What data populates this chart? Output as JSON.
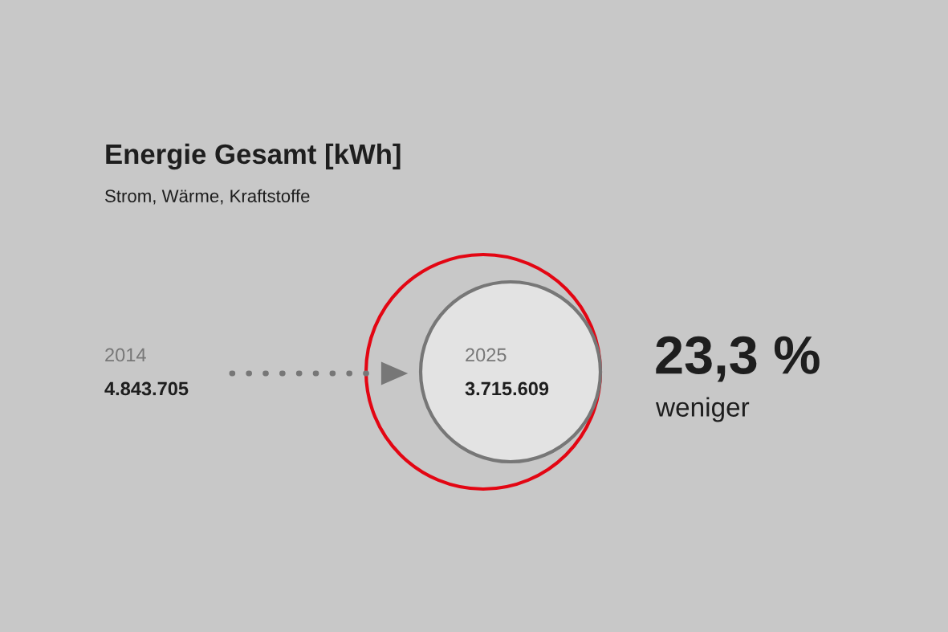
{
  "chart_data": {
    "type": "other",
    "title": "Energie Gesamt [kWh]",
    "subtitle": "Strom, Wärme, Kraftstoffe",
    "categories": [
      "2014",
      "2025"
    ],
    "values": [
      4843705,
      3715609
    ],
    "value_labels": [
      "4.843.705",
      "3.715.609"
    ],
    "colors": [
      "#e30613",
      "#777777"
    ],
    "annotations": [
      "23,3 %",
      "weniger"
    ]
  }
}
